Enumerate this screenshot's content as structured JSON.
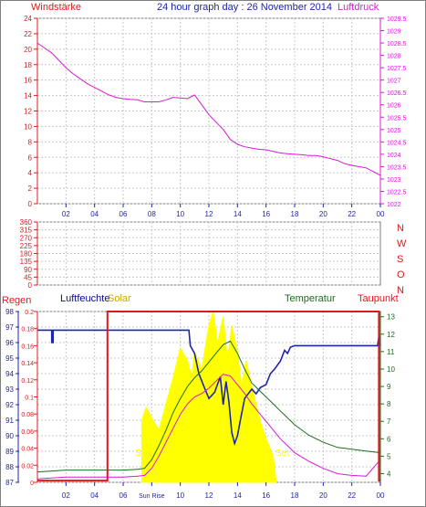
{
  "colors": {
    "red": "#e0181d",
    "blue": "#1f25a9",
    "magenta": "#d81ad8",
    "green": "#1b6d1b",
    "yellow": "#ffff00",
    "navy": "#0a0a8a",
    "grid": "#c8c8c8",
    "frame": "#7f7f7f"
  },
  "titles": {
    "top_left": "Windstärke",
    "top_center": "24 hour graph day : 26 November 2014",
    "top_right": "Luftdruck",
    "bottom_left": "Regen",
    "bottom_humidity": "Luftfeuchte",
    "bottom_solar": "Solar",
    "bottom_temp": "Temperatur",
    "bottom_dew": "Taupunkt"
  },
  "x_ticks": [
    "02",
    "04",
    "06",
    "08",
    "10",
    "12",
    "14",
    "16",
    "18",
    "20",
    "22",
    "00"
  ],
  "bottom_x_ticks": [
    "02",
    "04",
    "06",
    "Sun Rise",
    "10",
    "12",
    "14",
    "16",
    "18",
    "20",
    "22",
    "00"
  ],
  "chart_data": [
    {
      "type": "line",
      "title": "24 hour graph day : 26 November 2014",
      "left_axis": {
        "label": "Windstärke",
        "ticks": [
          "0",
          "2",
          "4",
          "6",
          "8",
          "10",
          "12",
          "14",
          "16",
          "18",
          "20",
          "22",
          "24"
        ],
        "ylim": [
          0,
          24
        ]
      },
      "right_axis": {
        "label": "Luftdruck",
        "ticks": [
          "1022",
          "1022.5",
          "1023",
          "1023.5",
          "1024",
          "1024.5",
          "1025",
          "1025.5",
          "1026",
          "1026.5",
          "1027",
          "1027.5",
          "1028",
          "1028.5",
          "1029",
          "1029.5"
        ],
        "ylim": [
          1022,
          1029.5
        ]
      },
      "x_range_hours": [
        0,
        24
      ],
      "series": [
        {
          "name": "Luftdruck",
          "color": "magenta",
          "x": [
            0.0,
            0.5,
            1.0,
            1.5,
            2.0,
            2.5,
            3.0,
            3.5,
            4.0,
            4.5,
            5.0,
            5.5,
            6.0,
            6.5,
            7.0,
            7.5,
            8.0,
            8.5,
            9.0,
            9.5,
            10.0,
            10.5,
            11.0,
            11.5,
            12.0,
            12.5,
            13.0,
            13.5,
            14.0,
            14.5,
            15.0,
            15.5,
            16.0,
            16.5,
            17.0,
            17.5,
            18.0,
            18.5,
            19.0,
            19.5,
            20.0,
            20.5,
            21.0,
            21.5,
            22.0,
            22.5,
            23.0,
            23.5,
            24.0
          ],
          "y": [
            1028.5,
            1028.3,
            1028.1,
            1027.8,
            1027.5,
            1027.25,
            1027.05,
            1026.85,
            1026.7,
            1026.55,
            1026.4,
            1026.3,
            1026.25,
            1026.22,
            1026.2,
            1026.12,
            1026.12,
            1026.12,
            1026.2,
            1026.3,
            1026.28,
            1026.25,
            1026.4,
            1026.0,
            1025.6,
            1025.3,
            1025.0,
            1024.6,
            1024.4,
            1024.3,
            1024.25,
            1024.2,
            1024.18,
            1024.12,
            1024.05,
            1024.02,
            1024.0,
            1023.98,
            1023.95,
            1023.95,
            1023.9,
            1023.82,
            1023.75,
            1023.62,
            1023.55,
            1023.5,
            1023.45,
            1023.3,
            1023.15
          ]
        }
      ]
    },
    {
      "type": "scatter",
      "left_axis": {
        "label": "",
        "ticks": [
          "0",
          "45",
          "90",
          "135",
          "180",
          "225",
          "270",
          "315",
          "360"
        ],
        "ylim": [
          0,
          360
        ]
      },
      "right_labels": [
        "N",
        "W",
        "S",
        "O",
        "N"
      ],
      "x_range_hours": [
        0,
        24
      ],
      "series": []
    },
    {
      "type": "line",
      "left_axis_humidity": {
        "label": "Luftfeuchte",
        "ticks": [
          "87",
          "88",
          "89",
          "90",
          "91",
          "92",
          "93",
          "94",
          "95",
          "96",
          "97",
          "98"
        ],
        "ylim": [
          87,
          98
        ]
      },
      "left_axis_rain": {
        "label": "Regen",
        "ticks": [
          "0",
          "0.02",
          "0.04",
          "0.06",
          "0.08",
          "0.1",
          "0.12",
          "0.14",
          "0.16",
          "0.18",
          "0.2"
        ],
        "ylim": [
          0,
          0.2
        ]
      },
      "right_axis": {
        "label": "Temperatur",
        "ticks": [
          "4",
          "5",
          "6",
          "7",
          "8",
          "9",
          "10",
          "11",
          "12",
          "13"
        ],
        "ylim": [
          3.5,
          13.3
        ]
      },
      "annotations": [
        "Sun",
        "Set"
      ],
      "x_range_hours": [
        0,
        24
      ],
      "series": [
        {
          "name": "Luftfeuchte",
          "color": "blue",
          "x": [
            0,
            1.0,
            1.0,
            1.1,
            1.1,
            10.6,
            10.7,
            11.0,
            11.3,
            11.6,
            12.0,
            12.4,
            12.8,
            13.0,
            13.2,
            13.4,
            13.6,
            13.8,
            14.0,
            14.2,
            14.5,
            15.0,
            15.3,
            15.6,
            16.0,
            16.3,
            16.6,
            17.0,
            17.3,
            17.5,
            17.7,
            18.0,
            18.5,
            23.8,
            23.9,
            24.0
          ],
          "y": [
            96.8,
            96.8,
            96.0,
            96.0,
            96.8,
            96.8,
            95.8,
            95.3,
            94.0,
            93.3,
            92.4,
            92.8,
            93.8,
            92.0,
            93.5,
            92.2,
            90.2,
            89.5,
            90.0,
            91.0,
            92.4,
            93.0,
            92.7,
            93.1,
            93.3,
            94.0,
            94.3,
            94.8,
            95.5,
            95.3,
            95.7,
            95.8,
            95.8,
            95.8,
            96.4,
            95.8
          ]
        },
        {
          "name": "Temperatur",
          "color": "green",
          "x": [
            0,
            1,
            2,
            3,
            4,
            5,
            6,
            7,
            7.5,
            8,
            8.5,
            9,
            9.5,
            10,
            10.5,
            11,
            11.5,
            12,
            12.5,
            13,
            13.5,
            14,
            14.5,
            15,
            15.5,
            16,
            16.5,
            17,
            17.5,
            18,
            19,
            20,
            21,
            22,
            23,
            24
          ],
          "y": [
            4.1,
            4.15,
            4.2,
            4.2,
            4.2,
            4.2,
            4.2,
            4.25,
            4.3,
            4.8,
            5.6,
            6.5,
            7.5,
            8.3,
            9.0,
            9.5,
            9.9,
            10.4,
            10.9,
            11.4,
            11.6,
            10.9,
            10.0,
            9.2,
            8.8,
            8.4,
            8.0,
            7.6,
            7.2,
            6.8,
            6.2,
            5.8,
            5.5,
            5.4,
            5.3,
            5.2
          ]
        },
        {
          "name": "Taupunkt",
          "color": "magenta",
          "x": [
            0,
            1,
            2,
            3,
            4,
            5,
            6,
            7,
            7.5,
            8,
            8.5,
            9,
            9.5,
            10,
            10.5,
            11,
            11.5,
            12,
            12.5,
            13,
            13.5,
            14,
            14.5,
            15,
            15.5,
            16,
            16.5,
            17,
            17.5,
            18,
            19,
            20,
            21,
            22,
            23,
            24
          ],
          "y": [
            3.7,
            3.75,
            3.8,
            3.8,
            3.8,
            3.8,
            3.8,
            3.85,
            3.9,
            4.3,
            5.0,
            5.8,
            6.6,
            7.4,
            8.0,
            8.4,
            8.6,
            8.9,
            9.3,
            9.7,
            9.6,
            9.1,
            8.6,
            8.0,
            7.5,
            7.0,
            6.5,
            6.0,
            5.6,
            5.2,
            4.7,
            4.3,
            4.0,
            3.9,
            3.85,
            4.8
          ]
        },
        {
          "name": "Solar",
          "color": "yellow",
          "x": [
            7.3,
            7.6,
            8.0,
            8.5,
            9.0,
            9.5,
            10.0,
            10.5,
            10.8,
            11.0,
            11.5,
            12.0,
            12.3,
            12.6,
            13.0,
            13.3,
            13.6,
            14.0,
            14.3,
            14.6,
            15.0,
            15.3,
            15.6,
            16.0,
            16.5,
            16.7
          ],
          "y": [
            7.0,
            7.8,
            7.2,
            6.5,
            8.0,
            9.5,
            11.2,
            10.5,
            9.5,
            11.0,
            10.0,
            12.5,
            13.3,
            11.5,
            13.0,
            10.5,
            12.5,
            11.0,
            9.0,
            10.5,
            9.0,
            8.0,
            7.0,
            6.0,
            5.0,
            3.6
          ]
        },
        {
          "name": "Regen",
          "color": "red",
          "x": [
            0,
            4.9,
            4.9,
            23.9,
            23.9,
            24
          ],
          "y": [
            0.002,
            0.002,
            0.2,
            0.2,
            0.002,
            0.002
          ]
        }
      ]
    }
  ]
}
